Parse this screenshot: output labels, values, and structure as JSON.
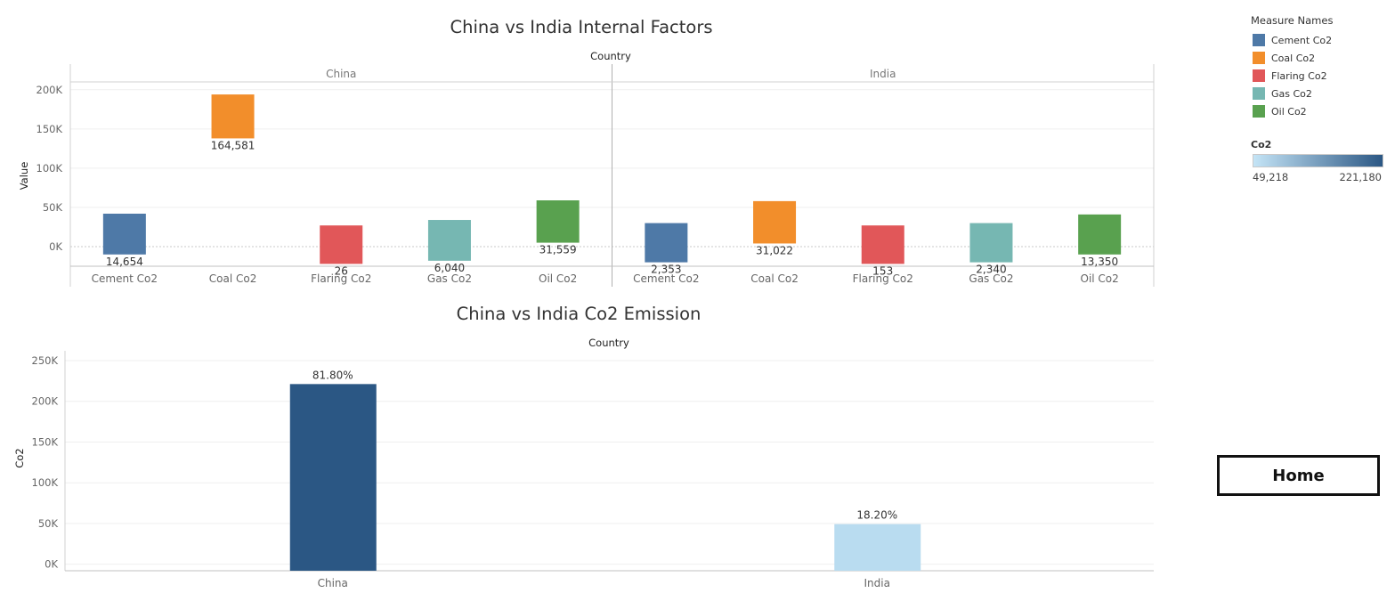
{
  "chart_data": [
    {
      "type": "bar",
      "title": "China vs India Internal Factors",
      "column_header": "Country",
      "ylabel": "Value",
      "ylim": [
        -25000,
        210000
      ],
      "yticks": [
        0,
        50000,
        100000,
        150000,
        200000
      ],
      "ytick_labels": [
        "0K",
        "50K",
        "100K",
        "150K",
        "200K"
      ],
      "panels": [
        {
          "name": "China",
          "bars": [
            {
              "category": "Cement Co2",
              "low": -10000,
              "high": 42000,
              "label": "14,654"
            },
            {
              "category": "Coal Co2",
              "low": 138000,
              "high": 194000,
              "label": "164,581"
            },
            {
              "category": "Flaring Co2",
              "low": -22000,
              "high": 27000,
              "label": "26"
            },
            {
              "category": "Gas Co2",
              "low": -18000,
              "high": 34000,
              "label": "6,040"
            },
            {
              "category": "Oil Co2",
              "low": 5000,
              "high": 59000,
              "label": "31,559"
            }
          ]
        },
        {
          "name": "India",
          "bars": [
            {
              "category": "Cement Co2",
              "low": -20000,
              "high": 30000,
              "label": "2,353"
            },
            {
              "category": "Coal Co2",
              "low": 4000,
              "high": 58000,
              "label": "31,022"
            },
            {
              "category": "Flaring Co2",
              "low": -22000,
              "high": 27000,
              "label": "153"
            },
            {
              "category": "Gas Co2",
              "low": -20000,
              "high": 30000,
              "label": "2,340"
            },
            {
              "category": "Oil Co2",
              "low": -10000,
              "high": 41000,
              "label": "13,350"
            }
          ]
        }
      ]
    },
    {
      "type": "bar",
      "title": "China vs India Co2 Emission",
      "column_header": "Country",
      "ylabel": "Co2",
      "ylim": [
        -8000,
        262000
      ],
      "yticks": [
        0,
        50000,
        100000,
        150000,
        200000,
        250000
      ],
      "ytick_labels": [
        "0K",
        "50K",
        "100K",
        "150K",
        "200K",
        "250K"
      ],
      "categories": [
        "China",
        "India"
      ],
      "values": [
        221180,
        49218
      ],
      "labels": [
        "81.80%",
        "18.20%"
      ],
      "colors": [
        "#2b5784",
        "#b9dcf0"
      ]
    }
  ],
  "legend": {
    "title": "Measure Names",
    "items": [
      {
        "label": "Cement Co2",
        "color": "#4e79a7"
      },
      {
        "label": "Coal Co2",
        "color": "#f28e2b"
      },
      {
        "label": "Flaring Co2",
        "color": "#e15759"
      },
      {
        "label": "Gas Co2",
        "color": "#76b7b2"
      },
      {
        "label": "Oil Co2",
        "color": "#59a14f"
      }
    ]
  },
  "colorbar": {
    "title": "Co2",
    "min_label": "49,218",
    "max_label": "221,180",
    "color_min": "#c4e4f6",
    "color_max": "#2b5784"
  },
  "home_button": {
    "label": "Home"
  }
}
